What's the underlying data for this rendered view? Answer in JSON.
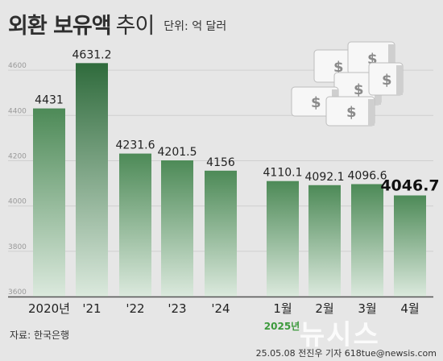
{
  "title": "외환 보유액",
  "title_suffix": "추이",
  "unit": "단위: 억 달러",
  "source": "자료: 한국은행",
  "credit": "25.05.08 전진우 기자 618tue@newsis.com",
  "watermark": "뉴시스",
  "colors": {
    "bar_dark": "#4d8a57",
    "bar_light": "#dbe9dd",
    "highlight_bar_dark": "#2f6b3c",
    "year_note": "#3c9a3c",
    "grid": "#cfcfcf"
  },
  "chart_data": {
    "type": "bar",
    "categories": [
      "2020년",
      "'21",
      "'22",
      "'23",
      "'24",
      "1월",
      "2월",
      "3월",
      "4월"
    ],
    "values": [
      4431,
      4631.2,
      4231.6,
      4201.5,
      4156,
      4110.1,
      4092.1,
      4096.6,
      4046.7
    ],
    "value_labels": [
      "4431",
      "4631.2",
      "4231.6",
      "4201.5",
      "4156",
      "4110.1",
      "4092.1",
      "4096.6",
      "4046.7"
    ],
    "highlight_index": 1,
    "emphasized_label_index": 8,
    "group_note": "2025년",
    "yticks": [
      "4600",
      "4400",
      "4200",
      "4000",
      "3800",
      "3600"
    ],
    "ylim": [
      3600,
      4700
    ],
    "grid": true
  }
}
